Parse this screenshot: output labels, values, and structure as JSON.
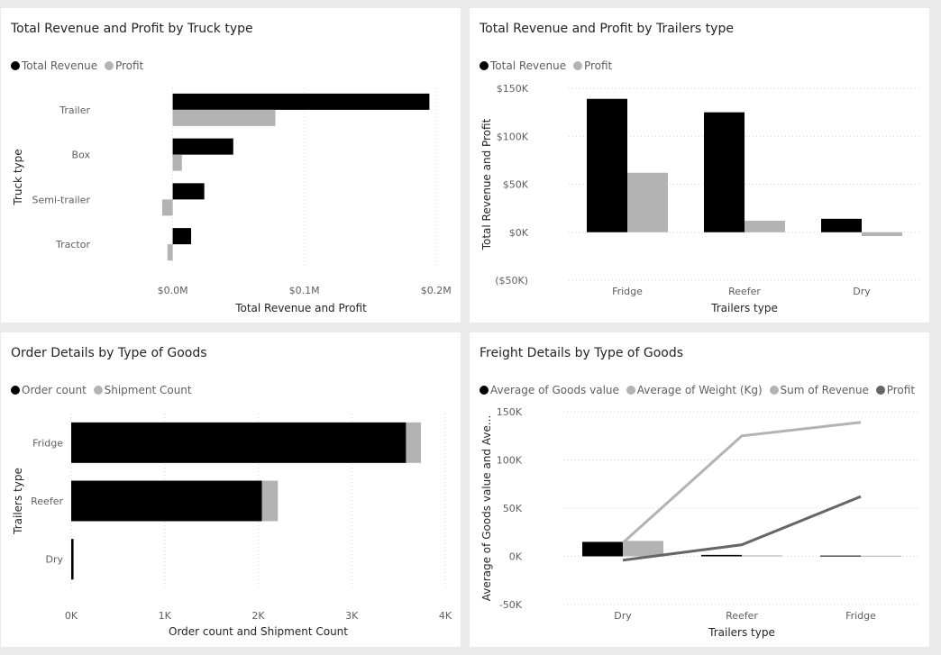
{
  "panels": [
    {
      "title": "Total Revenue and Profit by Truck type",
      "legend": [
        {
          "label": "Total Revenue",
          "color": "#000000"
        },
        {
          "label": "Profit",
          "color": "#b3b3b3"
        }
      ]
    },
    {
      "title": "Total Revenue and Profit by Trailers type",
      "legend": [
        {
          "label": "Total Revenue",
          "color": "#000000"
        },
        {
          "label": "Profit",
          "color": "#b3b3b3"
        }
      ]
    },
    {
      "title": "Order Details by Type of Goods",
      "legend": [
        {
          "label": "Order count",
          "color": "#000000"
        },
        {
          "label": "Shipment Count",
          "color": "#b3b3b3"
        }
      ]
    },
    {
      "title": "Freight Details by Type of Goods",
      "legend": [
        {
          "label": "Average of Goods value",
          "color": "#000000"
        },
        {
          "label": "Average of Weight (Kg)",
          "color": "#b3b3b3"
        },
        {
          "label": "Sum of Revenue",
          "color": "#b3b3b3"
        },
        {
          "label": "Profit",
          "color": "#666666"
        }
      ]
    }
  ],
  "chart_data": [
    {
      "type": "bar",
      "orientation": "horizontal",
      "categories": [
        "Trailer",
        "Box",
        "Semi-trailer",
        "Tractor"
      ],
      "series": [
        {
          "name": "Total Revenue",
          "color": "#000000",
          "values": [
            195000,
            46000,
            24000,
            14000
          ]
        },
        {
          "name": "Profit",
          "color": "#b3b3b3",
          "values": [
            78000,
            7000,
            -8000,
            -4000
          ]
        }
      ],
      "xlabel": "Total Revenue and Profit",
      "ylabel": "Truck type",
      "xticks": [
        "$0.0M",
        "$0.1M",
        "$0.2M"
      ],
      "xtick_values": [
        0,
        100000,
        200000
      ],
      "xlim": [
        -10000,
        205000
      ],
      "grid": true
    },
    {
      "type": "bar",
      "orientation": "vertical",
      "categories": [
        "Fridge",
        "Reefer",
        "Dry"
      ],
      "series": [
        {
          "name": "Total Revenue",
          "color": "#000000",
          "values": [
            139000,
            125000,
            14000
          ]
        },
        {
          "name": "Profit",
          "color": "#b3b3b3",
          "values": [
            62000,
            12000,
            -4000
          ]
        }
      ],
      "xlabel": "Trailers type",
      "ylabel": "Total Revenue and Profit",
      "yticks": [
        "$150K",
        "$100K",
        "$50K",
        "$0K",
        "($50K)"
      ],
      "ytick_values": [
        150000,
        100000,
        50000,
        0,
        -50000
      ],
      "ylim": [
        -50000,
        150000
      ],
      "grid": true
    },
    {
      "type": "bar",
      "orientation": "horizontal",
      "stacked": true,
      "categories": [
        "Fridge",
        "Reefer",
        "Dry"
      ],
      "series": [
        {
          "name": "Order count",
          "color": "#000000",
          "values": [
            3580,
            2040,
            25
          ]
        },
        {
          "name": "Shipment Count",
          "color": "#b3b3b3",
          "values": [
            160,
            170,
            0
          ]
        }
      ],
      "xlabel": "Order count and Shipment Count",
      "ylabel": "Trailers type",
      "xticks": [
        "0K",
        "1K",
        "2K",
        "3K",
        "4K"
      ],
      "xtick_values": [
        0,
        1000,
        2000,
        3000,
        4000
      ],
      "xlim": [
        0,
        4000
      ],
      "grid": true
    },
    {
      "type": "bar",
      "combo": "column + line",
      "categories": [
        "Dry",
        "Reefer",
        "Fridge"
      ],
      "series": [
        {
          "name": "Average of Goods value",
          "kind": "bar",
          "color": "#000000",
          "values": [
            15000,
            1500,
            800
          ]
        },
        {
          "name": "Average of Weight (Kg)",
          "kind": "bar",
          "color": "#b3b3b3",
          "values": [
            16000,
            1000,
            700
          ]
        },
        {
          "name": "Sum of Revenue",
          "kind": "line",
          "color": "#b3b3b3",
          "values": [
            14000,
            125000,
            139000
          ]
        },
        {
          "name": "Profit",
          "kind": "line",
          "color": "#666666",
          "values": [
            -4000,
            12000,
            62000
          ]
        }
      ],
      "xlabel": "Trailers type",
      "ylabel": "Average of Goods value and Ave...",
      "yticks": [
        "150K",
        "100K",
        "50K",
        "0K",
        "-50K"
      ],
      "ytick_values": [
        150000,
        100000,
        50000,
        0,
        -50000
      ],
      "ylim": [
        -50000,
        150000
      ],
      "grid": true
    }
  ]
}
